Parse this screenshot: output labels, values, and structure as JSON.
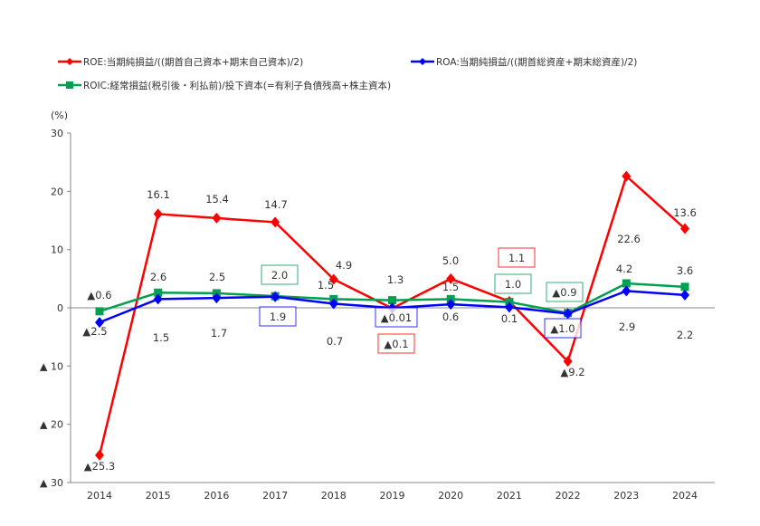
{
  "chart_data": {
    "type": "line",
    "title": "",
    "xlabel": "",
    "ylabel": "(%)",
    "ylim": [
      -30,
      30
    ],
    "yticks": [
      30,
      20,
      10,
      0,
      -10,
      -20,
      -30
    ],
    "ytick_labels": [
      "30",
      "20",
      "10",
      "0",
      "▲ 10",
      "▲ 20",
      "▲ 30"
    ],
    "categories": [
      "2014",
      "2015",
      "2016",
      "2017",
      "2018",
      "2019",
      "2020",
      "2021",
      "2022",
      "2023",
      "2024"
    ],
    "grid": false,
    "legend_position": "top",
    "series": [
      {
        "name": "ROE:当期純損益/((期首自己資本+期末自己資本)/2)",
        "color": "#ff0000",
        "marker": "diamond",
        "values": [
          -25.3,
          16.1,
          15.4,
          14.7,
          4.9,
          -0.1,
          5.0,
          1.1,
          -9.2,
          22.6,
          13.6
        ],
        "labels": [
          "▲25.3",
          "16.1",
          "15.4",
          "14.7",
          "4.9",
          "▲0.1",
          "5.0",
          "1.1",
          "▲9.2",
          "22.6",
          "13.6"
        ]
      },
      {
        "name": "ROA:当期純損益/((期首総資産+期末総資産)/2)",
        "color": "#0000ff",
        "marker": "diamond",
        "values": [
          -2.5,
          1.5,
          1.7,
          1.9,
          0.7,
          -0.01,
          0.6,
          0.1,
          -1.0,
          2.9,
          2.2
        ],
        "labels": [
          "▲2.5",
          "1.5",
          "1.7",
          "1.9",
          "0.7",
          "▲0.01",
          "0.6",
          "0.1",
          "▲1.0",
          "2.9",
          "2.2"
        ]
      },
      {
        "name": "ROIC:経常損益(税引後・利払前)/投下資本(=有利子負債残高+株主資本)",
        "color": "#00a050",
        "marker": "square",
        "values": [
          -0.6,
          2.6,
          2.5,
          2.0,
          1.5,
          1.3,
          1.5,
          1.0,
          -0.9,
          4.2,
          3.6
        ],
        "labels": [
          "▲0.6",
          "2.6",
          "2.5",
          "2.0",
          "1.5",
          "1.3",
          "1.5",
          "1.0",
          "▲0.9",
          "4.2",
          "3.6"
        ]
      }
    ]
  }
}
